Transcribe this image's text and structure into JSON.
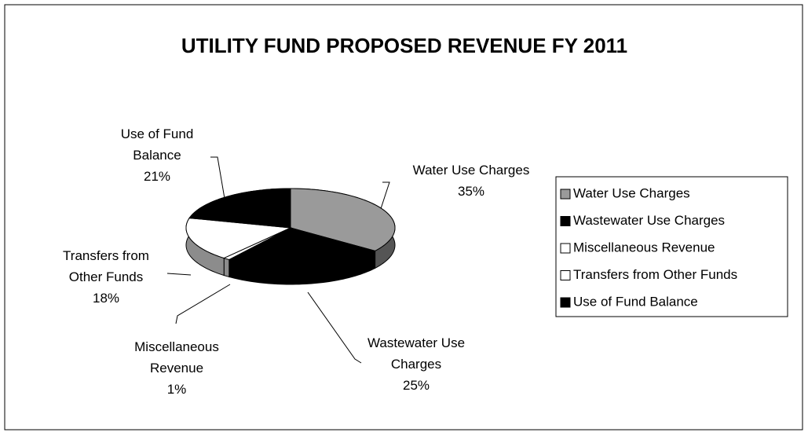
{
  "chart_data": {
    "type": "pie3d",
    "title": "UTILITY FUND PROPOSED REVENUE FY 2011",
    "categories": [
      "Water Use Charges",
      "Wastewater Use Charges",
      "Miscellaneous Revenue",
      "Transfers from Other Funds",
      "Use of Fund Balance"
    ],
    "values": [
      35,
      25,
      1,
      18,
      21
    ],
    "value_labels": [
      "35%",
      "25%",
      "1%",
      "18%",
      "21%"
    ],
    "colors": [
      "#9a9a9a",
      "#000000",
      "#ffffff",
      "#ffffff",
      "#000000"
    ],
    "legend": "right"
  }
}
